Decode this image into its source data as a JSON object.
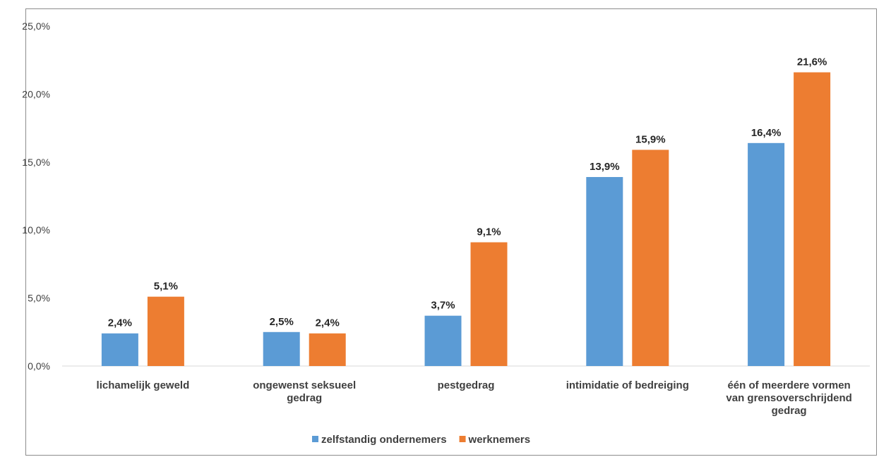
{
  "chart_data": {
    "type": "bar",
    "categories": [
      [
        "lichamelijk geweld"
      ],
      [
        "ongewenst seksueel",
        "gedrag"
      ],
      [
        "pestgedrag"
      ],
      [
        "intimidatie of bedreiging"
      ],
      [
        "één of meerdere vormen",
        "van grensoverschrijdend",
        "gedrag"
      ]
    ],
    "series": [
      {
        "name": "zelfstandig ondernemers",
        "values": [
          2.4,
          2.5,
          3.7,
          13.9,
          16.4
        ],
        "labels": [
          "2,4%",
          "2,5%",
          "3,7%",
          "13,9%",
          "16,4%"
        ],
        "color": "#5b9bd5"
      },
      {
        "name": "werknemers",
        "values": [
          5.1,
          2.4,
          9.1,
          15.9,
          21.6
        ],
        "labels": [
          "5,1%",
          "2,4%",
          "9,1%",
          "15,9%",
          "21,6%"
        ],
        "color": "#ed7d31"
      }
    ],
    "ylim": [
      0,
      25
    ],
    "yticks": [
      0,
      5,
      10,
      15,
      20,
      25
    ],
    "ytick_labels": [
      "0,0%",
      "5,0%",
      "10,0%",
      "15,0%",
      "20,0%",
      "25,0%"
    ],
    "grid": false,
    "legend": "bottom",
    "axis_color": "#d9d9d9",
    "text_color": "#404040"
  }
}
